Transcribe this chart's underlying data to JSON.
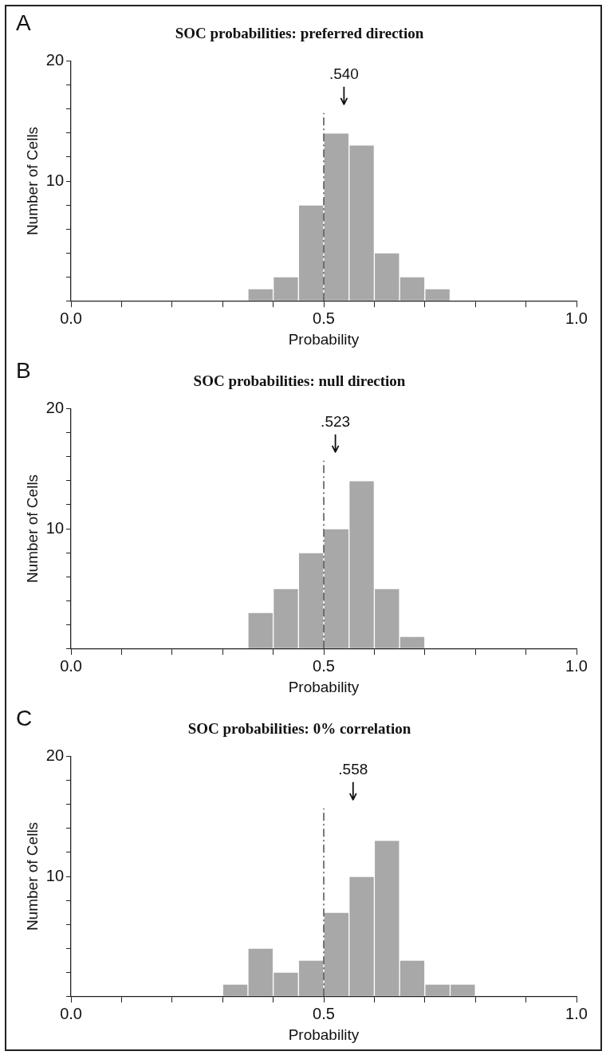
{
  "chart_data": [
    {
      "type": "histogram",
      "title": "SOC probabilities: preferred direction",
      "xlabel": "Probability",
      "ylabel": "Number of Cells",
      "annotations": [
        "A"
      ],
      "bins": [
        0.35,
        0.4,
        0.45,
        0.5,
        0.55,
        0.6,
        0.65,
        0.7,
        0.75
      ],
      "values": [
        1,
        2,
        8,
        14,
        13,
        4,
        2,
        1
      ],
      "color": "#a8a8a8",
      "xlim": [
        0,
        1
      ],
      "xticks": [
        {
          "value": 0,
          "label": "0.0"
        },
        {
          "value": 0.1,
          "label": null
        },
        {
          "value": 0.2,
          "label": null
        },
        {
          "value": 0.3,
          "label": null
        },
        {
          "value": 0.4,
          "label": null
        },
        {
          "value": 0.5,
          "label": "0.5"
        },
        {
          "value": 0.6,
          "label": null
        },
        {
          "value": 0.7,
          "label": null
        },
        {
          "value": 0.8,
          "label": null
        },
        {
          "value": 0.9,
          "label": null
        },
        {
          "value": 1,
          "label": "1.0"
        }
      ],
      "ylim": [
        0,
        20
      ],
      "yticks": [
        {
          "value": 0,
          "label": null
        },
        {
          "value": 2,
          "label": null
        },
        {
          "value": 4,
          "label": null
        },
        {
          "value": 6,
          "label": null
        },
        {
          "value": 8,
          "label": null
        },
        {
          "value": 10,
          "label": "10"
        },
        {
          "value": 12,
          "label": null
        },
        {
          "value": 14,
          "label": null
        },
        {
          "value": 16,
          "label": null
        },
        {
          "value": 18,
          "label": null
        },
        {
          "value": 20,
          "label": "20"
        }
      ],
      "ref_lines": [
        {
          "axis": "x",
          "value": 0.5,
          "line_style": "dashdot",
          "color": "#222222"
        },
        {
          "axis": "x",
          "value": 0.54,
          "label": ".540",
          "color": "#111111"
        }
      ],
      "grid": false,
      "legend": false
    },
    {
      "type": "histogram",
      "title": "SOC probabilities: null direction",
      "xlabel": "Probability",
      "ylabel": "Number of Cells",
      "annotations": [
        "B"
      ],
      "bins": [
        0.35,
        0.4,
        0.45,
        0.5,
        0.55,
        0.6,
        0.65,
        0.7
      ],
      "values": [
        3,
        5,
        8,
        10,
        14,
        5,
        1
      ],
      "color": "#a8a8a8",
      "xlim": [
        0,
        1
      ],
      "xticks": [
        {
          "value": 0,
          "label": "0.0"
        },
        {
          "value": 0.1,
          "label": null
        },
        {
          "value": 0.2,
          "label": null
        },
        {
          "value": 0.3,
          "label": null
        },
        {
          "value": 0.4,
          "label": null
        },
        {
          "value": 0.5,
          "label": "0.5"
        },
        {
          "value": 0.6,
          "label": null
        },
        {
          "value": 0.7,
          "label": null
        },
        {
          "value": 0.8,
          "label": null
        },
        {
          "value": 0.9,
          "label": null
        },
        {
          "value": 1,
          "label": "1.0"
        }
      ],
      "ylim": [
        0,
        20
      ],
      "yticks": [
        {
          "value": 0,
          "label": null
        },
        {
          "value": 2,
          "label": null
        },
        {
          "value": 4,
          "label": null
        },
        {
          "value": 6,
          "label": null
        },
        {
          "value": 8,
          "label": null
        },
        {
          "value": 10,
          "label": "10"
        },
        {
          "value": 12,
          "label": null
        },
        {
          "value": 14,
          "label": null
        },
        {
          "value": 16,
          "label": null
        },
        {
          "value": 18,
          "label": null
        },
        {
          "value": 20,
          "label": "20"
        }
      ],
      "ref_lines": [
        {
          "axis": "x",
          "value": 0.5,
          "line_style": "dashdot",
          "color": "#222222"
        },
        {
          "axis": "x",
          "value": 0.523,
          "label": ".523",
          "color": "#111111"
        }
      ],
      "grid": false,
      "legend": false
    },
    {
      "type": "histogram",
      "title": "SOC probabilities: 0% correlation",
      "xlabel": "Probability",
      "ylabel": "Number of Cells",
      "annotations": [
        "C"
      ],
      "bins": [
        0.3,
        0.35,
        0.4,
        0.45,
        0.5,
        0.55,
        0.6,
        0.65,
        0.7,
        0.75,
        0.8
      ],
      "values": [
        1,
        4,
        2,
        3,
        7,
        10,
        13,
        3,
        1,
        1
      ],
      "color": "#a8a8a8",
      "xlim": [
        0,
        1
      ],
      "xticks": [
        {
          "value": 0,
          "label": "0.0"
        },
        {
          "value": 0.1,
          "label": null
        },
        {
          "value": 0.2,
          "label": null
        },
        {
          "value": 0.3,
          "label": null
        },
        {
          "value": 0.4,
          "label": null
        },
        {
          "value": 0.5,
          "label": "0.5"
        },
        {
          "value": 0.6,
          "label": null
        },
        {
          "value": 0.7,
          "label": null
        },
        {
          "value": 0.8,
          "label": null
        },
        {
          "value": 0.9,
          "label": null
        },
        {
          "value": 1,
          "label": "1.0"
        }
      ],
      "ylim": [
        0,
        20
      ],
      "yticks": [
        {
          "value": 0,
          "label": null
        },
        {
          "value": 2,
          "label": null
        },
        {
          "value": 4,
          "label": null
        },
        {
          "value": 6,
          "label": null
        },
        {
          "value": 8,
          "label": null
        },
        {
          "value": 10,
          "label": "10"
        },
        {
          "value": 12,
          "label": null
        },
        {
          "value": 14,
          "label": null
        },
        {
          "value": 16,
          "label": null
        },
        {
          "value": 18,
          "label": null
        },
        {
          "value": 20,
          "label": "20"
        }
      ],
      "ref_lines": [
        {
          "axis": "x",
          "value": 0.5,
          "line_style": "dashdot",
          "color": "#222222"
        },
        {
          "axis": "x",
          "value": 0.558,
          "label": ".558",
          "color": "#111111"
        }
      ],
      "grid": false,
      "legend": false
    }
  ]
}
